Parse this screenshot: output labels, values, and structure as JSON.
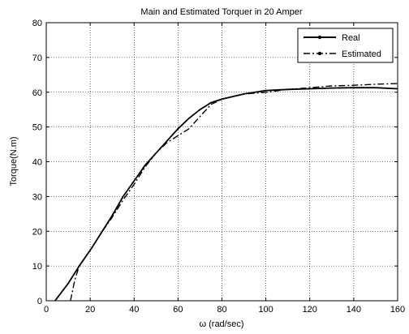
{
  "chart_data": {
    "type": "line",
    "title": "Main and Estimated Torquer in 20 Amper",
    "xlabel": "ω (rad/sec)",
    "ylabel": "Torque(N.m)",
    "xlim": [
      0,
      160
    ],
    "ylim": [
      0,
      80
    ],
    "xticks": [
      0,
      20,
      40,
      60,
      80,
      100,
      120,
      140,
      160
    ],
    "yticks": [
      0,
      10,
      20,
      30,
      40,
      50,
      60,
      70,
      80
    ],
    "grid": true,
    "legend_position": "top-right",
    "series": [
      {
        "name": "Real",
        "style": "solid",
        "color": "#000000",
        "x": [
          4,
          10,
          15,
          20,
          25,
          30,
          35,
          40,
          45,
          50,
          55,
          60,
          65,
          70,
          75,
          80,
          90,
          100,
          110,
          120,
          130,
          140,
          150,
          160
        ],
        "y": [
          0,
          5,
          10,
          14.5,
          19.5,
          24.5,
          30,
          34.5,
          39,
          42.5,
          46,
          49.5,
          52.5,
          55,
          57,
          58,
          59.5,
          60.5,
          60.8,
          61,
          61.2,
          61.3,
          61.3,
          61
        ]
      },
      {
        "name": "Estimated",
        "style": "dashdot",
        "color": "#000000",
        "x": [
          11,
          13,
          15,
          20,
          25,
          30,
          35,
          40,
          45,
          50,
          55,
          60,
          65,
          70,
          75,
          80,
          90,
          100,
          110,
          120,
          130,
          140,
          150,
          160
        ],
        "y": [
          0,
          6,
          10,
          14.5,
          19.5,
          24,
          29,
          33.5,
          38.5,
          42.5,
          45.5,
          47.5,
          49.5,
          53,
          56.5,
          58,
          59.5,
          60,
          60.8,
          61.3,
          61.8,
          62,
          62.3,
          62.5
        ]
      }
    ]
  }
}
